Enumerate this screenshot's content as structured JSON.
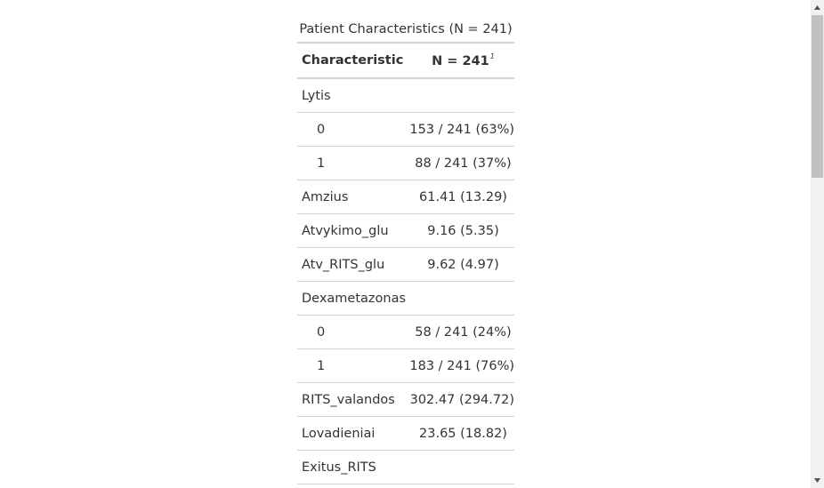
{
  "table": {
    "caption": "Patient Characteristics (N = 241)",
    "header": {
      "characteristic": "Characteristic",
      "n": "N = 241",
      "footnote_mark": "1"
    },
    "rows": [
      {
        "label": "Lytis",
        "value": ""
      },
      {
        "label": "0",
        "value": "153 / 241 (63%)"
      },
      {
        "label": "1",
        "value": "88 / 241 (37%)"
      },
      {
        "label": "Amzius",
        "value": "61.41 (13.29)"
      },
      {
        "label": "Atvykimo_glu",
        "value": "9.16 (5.35)"
      },
      {
        "label": "Atv_RITS_glu",
        "value": "9.62 (4.97)"
      },
      {
        "label": "Dexametazonas",
        "value": ""
      },
      {
        "label": "0",
        "value": "58 / 241 (24%)"
      },
      {
        "label": "1",
        "value": "183 / 241 (76%)"
      },
      {
        "label": "RITS_valandos",
        "value": "302.47 (294.72)"
      },
      {
        "label": "Lovadieniai",
        "value": "23.65 (18.82)"
      },
      {
        "label": "Exitus_RITS",
        "value": ""
      }
    ]
  },
  "scrollbar": {
    "up_icon": "triangle-up-icon",
    "down_icon": "triangle-down-icon"
  }
}
